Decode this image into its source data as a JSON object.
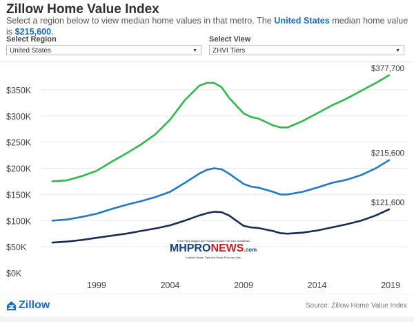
{
  "header": {
    "title": "Zillow Home Value Index",
    "intro_prefix": "Select a region below to view median home values in that metro. The ",
    "intro_highlight": "United States",
    "intro_middle": " median home value is ",
    "intro_value": "$215,600",
    "intro_suffix": "."
  },
  "controls": {
    "region_label": "Select Region",
    "region_value": "United States",
    "view_label": "Select View",
    "view_value": "ZHVI Tiers"
  },
  "footer": {
    "logo_text": "Zillow",
    "source": "Source: Zillow Home Value Index"
  },
  "watermark": {
    "top": "Third Party Images Are Provided Under Fair Use Guidelines",
    "brand_left": "MHPRO",
    "brand_right": "NEWS",
    "brand_suffix": ".com",
    "sub": "Industry News, Tips and Views Pros can Use"
  },
  "chart_data": {
    "type": "line",
    "ylim": [
      0,
      400000
    ],
    "xlim": [
      1996.0,
      2018.9
    ],
    "yticks": [
      "$0K",
      "$50K",
      "$100K",
      "$150K",
      "$200K",
      "$250K",
      "$300K",
      "$350K"
    ],
    "ytick_values": [
      0,
      50000,
      100000,
      150000,
      200000,
      250000,
      300000,
      350000
    ],
    "xticks": [
      "1999",
      "2004",
      "2009",
      "2014",
      "2019"
    ],
    "xtick_values": [
      1999,
      2004,
      2009,
      2014,
      2019
    ],
    "grid": "horizontal",
    "series": [
      {
        "color": "#2eb84b",
        "end_label": "$377,700",
        "x": [
          1996.0,
          1997.0,
          1998.0,
          1999.0,
          2000.0,
          2001.0,
          2002.0,
          2003.0,
          2004.0,
          2005.0,
          2006.0,
          2006.5,
          2007.0,
          2007.5,
          2008.0,
          2009.0,
          2009.5,
          2010.0,
          2011.0,
          2011.5,
          2012.0,
          2013.0,
          2014.0,
          2015.0,
          2016.0,
          2017.0,
          2018.0,
          2018.9
        ],
        "values": [
          175000,
          177000,
          185000,
          195000,
          212000,
          228000,
          245000,
          265000,
          293000,
          330000,
          358000,
          363000,
          363000,
          355000,
          335000,
          305000,
          298000,
          295000,
          282000,
          278000,
          278000,
          290000,
          305000,
          320000,
          333000,
          348000,
          363000,
          377700
        ]
      },
      {
        "color": "#1f78c8",
        "end_label": "$215,600",
        "x": [
          1996.0,
          1997.0,
          1998.0,
          1999.0,
          2000.0,
          2001.0,
          2002.0,
          2003.0,
          2004.0,
          2005.0,
          2006.0,
          2006.5,
          2007.0,
          2007.5,
          2008.0,
          2009.0,
          2009.5,
          2010.0,
          2011.0,
          2011.5,
          2012.0,
          2013.0,
          2014.0,
          2015.0,
          2016.0,
          2017.0,
          2018.0,
          2018.9
        ],
        "values": [
          100000,
          102000,
          107000,
          113000,
          122000,
          130000,
          137000,
          145000,
          155000,
          172000,
          190000,
          197000,
          200000,
          198000,
          190000,
          170000,
          165000,
          163000,
          155000,
          150000,
          150000,
          155000,
          163000,
          172000,
          178000,
          187000,
          200000,
          215600
        ]
      },
      {
        "color": "#1a2b52",
        "end_label": "$121,600",
        "x": [
          1996.0,
          1997.0,
          1998.0,
          1999.0,
          2000.0,
          2001.0,
          2002.0,
          2003.0,
          2004.0,
          2005.0,
          2006.0,
          2006.5,
          2007.0,
          2007.5,
          2008.0,
          2009.0,
          2009.5,
          2010.0,
          2011.0,
          2011.5,
          2012.0,
          2013.0,
          2014.0,
          2015.0,
          2016.0,
          2017.0,
          2018.0,
          2018.9
        ],
        "values": [
          58000,
          60000,
          63000,
          67000,
          71000,
          75000,
          80000,
          85000,
          91000,
          100000,
          110000,
          114000,
          117000,
          116000,
          110000,
          90000,
          87000,
          86000,
          80000,
          76000,
          75000,
          77000,
          81000,
          87000,
          93000,
          100000,
          110000,
          121600
        ]
      }
    ]
  }
}
